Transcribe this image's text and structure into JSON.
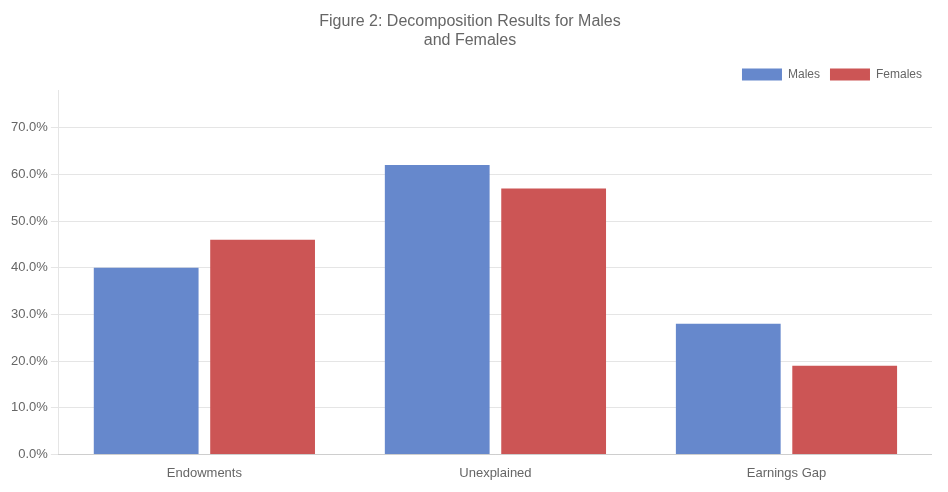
{
  "chart_data": {
    "type": "bar",
    "title": "Figure 2: Decomposition Results for Males\nand Females",
    "categories": [
      "Endowments",
      "Unexplained",
      "Earnings Gap"
    ],
    "series": [
      {
        "name": "Males",
        "color": "#6688CC",
        "values": [
          0.4,
          0.62,
          0.28
        ]
      },
      {
        "name": "Females",
        "color": "#CC5555",
        "values": [
          0.46,
          0.57,
          0.19
        ]
      }
    ],
    "ylim": [
      0.0,
      0.78
    ],
    "yticks": [
      {
        "value": 0.0,
        "label": "0.0%"
      },
      {
        "value": 0.1,
        "label": "10.0%"
      },
      {
        "value": 0.2,
        "label": "20.0%"
      },
      {
        "value": 0.3,
        "label": "30.0%"
      },
      {
        "value": 0.4,
        "label": "40.0%"
      },
      {
        "value": 0.5,
        "label": "50.0%"
      },
      {
        "value": 0.6,
        "label": "60.0%"
      },
      {
        "value": 0.7,
        "label": "70.0%"
      }
    ],
    "grid": true,
    "legend": "upper right"
  }
}
